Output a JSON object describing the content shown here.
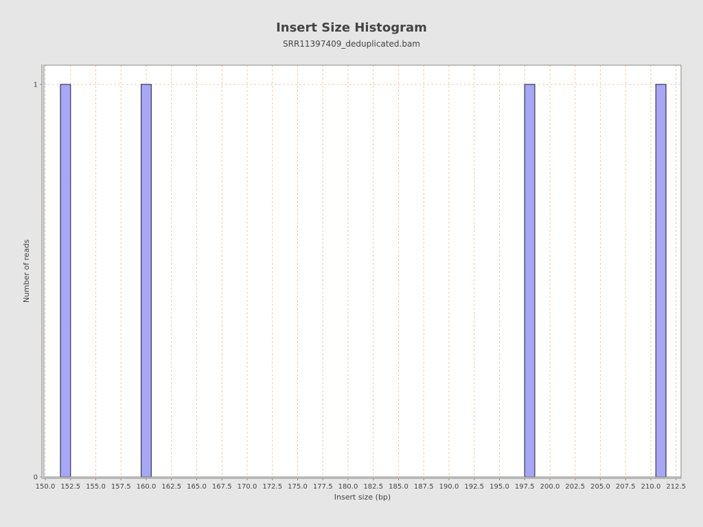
{
  "chart_data": {
    "type": "bar",
    "title": "Insert Size Histogram",
    "subtitle": "SRR11397409_deduplicated.bam",
    "xlabel": "Insert size (bp)",
    "ylabel": "Number of reads",
    "xlim": [
      150.0,
      212.5
    ],
    "ylim": [
      0,
      1
    ],
    "x_ticks": [
      "150.0",
      "152.5",
      "155.0",
      "157.5",
      "160.0",
      "162.5",
      "165.0",
      "167.5",
      "170.0",
      "172.5",
      "175.0",
      "177.5",
      "180.0",
      "182.5",
      "185.0",
      "187.5",
      "190.0",
      "192.5",
      "195.0",
      "197.5",
      "200.0",
      "202.5",
      "205.0",
      "207.5",
      "210.0",
      "212.5"
    ],
    "y_ticks": [
      "0",
      "1"
    ],
    "bars": [
      {
        "x": 152,
        "value": 1
      },
      {
        "x": 160,
        "value": 1
      },
      {
        "x": 198,
        "value": 1
      },
      {
        "x": 211,
        "value": 1
      }
    ],
    "grid": true,
    "colors": {
      "bar_fill": "#a7a7f5",
      "bar_stroke": "#333355",
      "grid": "#f0c8a8",
      "background": "#e6e6e6",
      "plot_background": "#ffffff"
    }
  }
}
